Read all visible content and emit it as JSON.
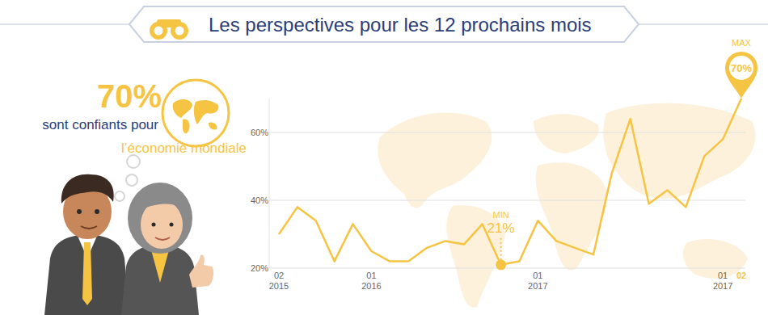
{
  "callout": {
    "stat": "70%",
    "lines": [
      "sont confiants pour",
      "l’économie mondiale"
    ]
  },
  "chart_data": {
    "type": "line",
    "title": "Les perspectives pour les 12 prochains mois",
    "categories": [
      "02\n2015",
      null,
      null,
      null,
      null,
      "01\n2016",
      null,
      null,
      null,
      null,
      null,
      null,
      null,
      null,
      "01\n2017",
      null,
      null,
      null,
      null,
      null,
      null,
      null,
      null,
      null,
      "01\n2017",
      "02"
    ],
    "values": [
      30,
      38,
      34,
      22,
      33,
      25,
      22,
      22,
      26,
      28,
      27,
      33,
      21,
      22,
      34,
      28,
      26,
      24,
      48,
      64,
      39,
      43,
      38,
      53,
      58,
      70
    ],
    "value_labels": [
      null,
      null,
      null,
      null,
      null,
      null,
      null,
      null,
      null,
      null,
      null,
      null,
      "21%",
      null,
      null,
      null,
      null,
      null,
      null,
      null,
      null,
      null,
      null,
      null,
      null,
      "70%"
    ],
    "annotations": [
      {
        "text": "MIN",
        "index": 12
      },
      {
        "text": "MAX",
        "index": 25
      }
    ],
    "color": "#f6c443",
    "ylim": [
      20,
      70
    ],
    "yticks": [
      {
        "value": 20,
        "label": "20%"
      },
      {
        "value": 40,
        "label": "40%"
      },
      {
        "value": 60,
        "label": "60%"
      }
    ],
    "grid": true
  }
}
